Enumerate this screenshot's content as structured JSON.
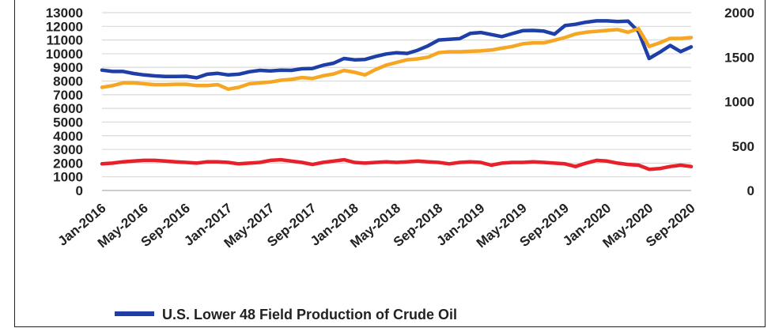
{
  "chart_data": {
    "type": "line",
    "x_categories": [
      "Jan-2016",
      "Feb-2016",
      "Mar-2016",
      "Apr-2016",
      "May-2016",
      "Jun-2016",
      "Jul-2016",
      "Aug-2016",
      "Sep-2016",
      "Oct-2016",
      "Nov-2016",
      "Dec-2016",
      "Jan-2017",
      "Feb-2017",
      "Mar-2017",
      "Apr-2017",
      "May-2017",
      "Jun-2017",
      "Jul-2017",
      "Aug-2017",
      "Sep-2017",
      "Oct-2017",
      "Nov-2017",
      "Dec-2017",
      "Jan-2018",
      "Feb-2018",
      "Mar-2018",
      "Apr-2018",
      "May-2018",
      "Jun-2018",
      "Jul-2018",
      "Aug-2018",
      "Sep-2018",
      "Oct-2018",
      "Nov-2018",
      "Dec-2018",
      "Jan-2019",
      "Feb-2019",
      "Mar-2019",
      "Apr-2019",
      "May-2019",
      "Jun-2019",
      "Jul-2019",
      "Aug-2019",
      "Sep-2019",
      "Oct-2019",
      "Nov-2019",
      "Dec-2019",
      "Jan-2020",
      "Feb-2020",
      "Mar-2020",
      "Apr-2020",
      "May-2020",
      "Jun-2020",
      "Jul-2020",
      "Aug-2020",
      "Sep-2020"
    ],
    "x_tick_labels": [
      "Jan-2016",
      "May-2016",
      "Sep-2016",
      "Jan-2017",
      "May-2017",
      "Sep-2017",
      "Jan-2018",
      "May-2018",
      "Sep-2018",
      "Jan-2019",
      "May-2019",
      "Sep-2019",
      "Jan-2020",
      "May-2020",
      "Sep-2020"
    ],
    "y_left_ticks": [
      "0",
      "1000",
      "2000",
      "3000",
      "4000",
      "5000",
      "6000",
      "7000",
      "8000",
      "9000",
      "10000",
      "11000",
      "12000",
      "13000"
    ],
    "y_right_ticks": [
      "0",
      "500",
      "1000",
      "1500",
      "2000"
    ],
    "ylim_left": [
      0,
      13000
    ],
    "ylim_right": [
      0,
      2000
    ],
    "grid": true,
    "series": [
      {
        "name": "U.S. Lower 48 Field Production of Crude Oil",
        "axis": "left",
        "color": "#1f3fa8",
        "values": [
          8800,
          8700,
          8700,
          8550,
          8450,
          8380,
          8330,
          8340,
          8350,
          8240,
          8500,
          8560,
          8450,
          8500,
          8680,
          8780,
          8740,
          8800,
          8780,
          8900,
          8920,
          9150,
          9300,
          9650,
          9550,
          9580,
          9800,
          9980,
          10070,
          10020,
          10250,
          10580,
          11000,
          11050,
          11100,
          11480,
          11550,
          11400,
          11250,
          11470,
          11680,
          11700,
          11650,
          11430,
          12050,
          12150,
          12300,
          12400,
          12400,
          12350,
          12380,
          11600,
          9650,
          10100,
          10600,
          10150,
          10500
        ]
      },
      {
        "name": "",
        "axis": "right",
        "color": "#f5a623",
        "values": [
          1160,
          1180,
          1210,
          1210,
          1200,
          1190,
          1190,
          1195,
          1195,
          1180,
          1180,
          1190,
          1140,
          1160,
          1200,
          1210,
          1220,
          1240,
          1250,
          1270,
          1260,
          1290,
          1310,
          1350,
          1330,
          1300,
          1360,
          1410,
          1440,
          1470,
          1480,
          1500,
          1550,
          1560,
          1560,
          1565,
          1570,
          1580,
          1600,
          1620,
          1650,
          1660,
          1660,
          1690,
          1720,
          1760,
          1780,
          1790,
          1800,
          1810,
          1780,
          1820,
          1620,
          1660,
          1710,
          1710,
          1720
        ]
      },
      {
        "name": "",
        "axis": "left",
        "color": "#e8202a",
        "values": [
          1950,
          2000,
          2100,
          2150,
          2200,
          2200,
          2150,
          2100,
          2050,
          2000,
          2100,
          2100,
          2050,
          1950,
          2000,
          2050,
          2200,
          2250,
          2150,
          2050,
          1900,
          2050,
          2150,
          2250,
          2050,
          2000,
          2050,
          2100,
          2050,
          2100,
          2150,
          2100,
          2050,
          1950,
          2050,
          2100,
          2050,
          1850,
          2000,
          2050,
          2050,
          2100,
          2050,
          2000,
          1950,
          1750,
          2000,
          2200,
          2150,
          2000,
          1900,
          1850,
          1550,
          1600,
          1750,
          1850,
          1750
        ]
      }
    ]
  },
  "legend": {
    "items": [
      {
        "label": "U.S. Lower 48 Field Production of Crude Oil",
        "color": "#1f3fa8"
      }
    ]
  }
}
